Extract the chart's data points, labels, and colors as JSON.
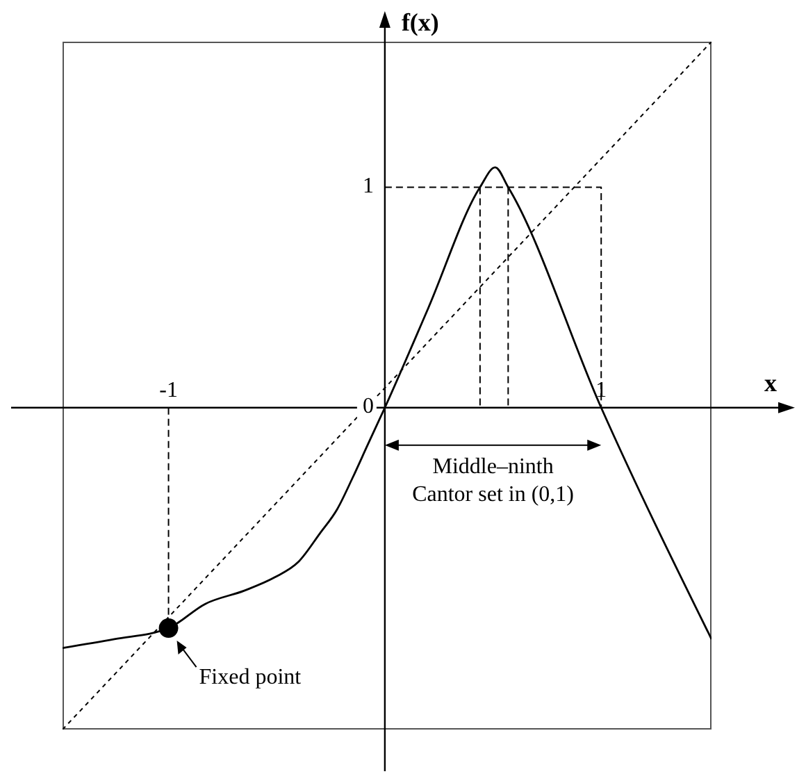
{
  "chart_data": {
    "type": "line",
    "xlabel": "x",
    "ylabel": "f(x)",
    "xlim": [
      -1.49,
      1.51
    ],
    "ylim": [
      -1.46,
      1.66
    ],
    "xticks": [
      -1,
      1
    ],
    "yticks": [
      0,
      1
    ],
    "series": [
      {
        "color": "#000000",
        "line_style": "solid",
        "x": [
          -1.49,
          -1.25,
          -1,
          -0.83,
          -0.65,
          -0.51,
          -0.4,
          -0.3,
          -0.22,
          -0.15,
          -0.08,
          0,
          0.2,
          0.44,
          0.51,
          0.57,
          1,
          1.51
        ],
        "values": [
          -1.09,
          -1.05,
          -1,
          -0.89,
          -0.83,
          -0.77,
          -0.7,
          -0.57,
          -0.46,
          -0.32,
          -0.17,
          0,
          0.45,
          1,
          1.09,
          1,
          0,
          -1.05
        ]
      },
      {
        "color": "#000000",
        "line_style": "dotted",
        "x": [
          -1.49,
          1.51
        ],
        "values": [
          -1.46,
          1.66
        ]
      },
      {
        "color": "#000000",
        "line_style": "dashed",
        "x": [
          0,
          1,
          1
        ],
        "values": [
          1,
          1,
          0
        ]
      },
      {
        "color": "#000000",
        "line_style": "dashed",
        "x": [
          0.44,
          0.44
        ],
        "values": [
          1,
          0
        ]
      },
      {
        "color": "#000000",
        "line_style": "dashed",
        "x": [
          0.57,
          0.57
        ],
        "values": [
          1,
          0
        ]
      },
      {
        "color": "#000000",
        "line_style": "dashed",
        "x": [
          -1,
          -1
        ],
        "values": [
          0,
          -1
        ]
      },
      {
        "type": "scatter",
        "color": "#000000",
        "marker": "circle",
        "x": [
          -1
        ],
        "values": [
          -1
        ]
      }
    ],
    "annotations": [
      "Middle–ninth Cantor set in (0,1)",
      {
        "text": "Fixed point",
        "x": -1,
        "y": -1
      }
    ]
  }
}
